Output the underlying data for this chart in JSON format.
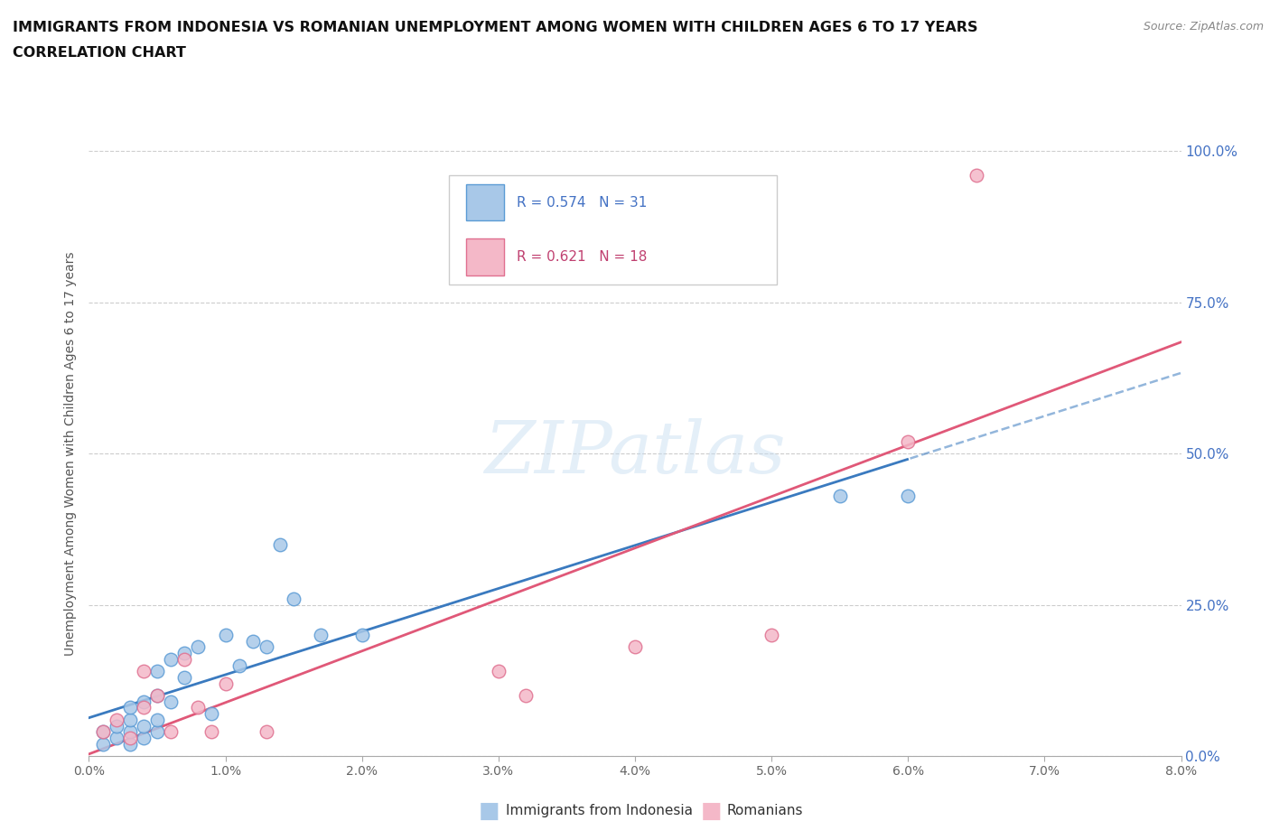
{
  "title_line1": "IMMIGRANTS FROM INDONESIA VS ROMANIAN UNEMPLOYMENT AMONG WOMEN WITH CHILDREN AGES 6 TO 17 YEARS",
  "title_line2": "CORRELATION CHART",
  "source": "Source: ZipAtlas.com",
  "ylabel": "Unemployment Among Women with Children Ages 6 to 17 years",
  "xlabel_ticks": [
    "0.0%",
    "1.0%",
    "2.0%",
    "3.0%",
    "4.0%",
    "5.0%",
    "6.0%",
    "7.0%",
    "8.0%"
  ],
  "xlim": [
    0.0,
    0.08
  ],
  "ylim": [
    0.0,
    1.0
  ],
  "ytick_positions": [
    0.0,
    0.25,
    0.5,
    0.75,
    1.0
  ],
  "ytick_labels": [
    "0.0%",
    "25.0%",
    "50.0%",
    "75.0%",
    "100.0%"
  ],
  "background_color": "#ffffff",
  "watermark_text": "ZIPatlas",
  "legend_R1": "0.574",
  "legend_N1": "31",
  "legend_R2": "0.621",
  "legend_N2": "18",
  "blue_fill": "#a8c8e8",
  "blue_edge": "#5b9bd5",
  "pink_fill": "#f4b8c8",
  "pink_edge": "#e07090",
  "blue_line_color": "#3a7abf",
  "pink_line_color": "#e05878",
  "indonesia_x": [
    0.001,
    0.001,
    0.002,
    0.002,
    0.003,
    0.003,
    0.003,
    0.003,
    0.004,
    0.004,
    0.004,
    0.005,
    0.005,
    0.005,
    0.005,
    0.006,
    0.006,
    0.007,
    0.007,
    0.008,
    0.009,
    0.01,
    0.011,
    0.012,
    0.013,
    0.014,
    0.015,
    0.017,
    0.02,
    0.055,
    0.06
  ],
  "indonesia_y": [
    0.02,
    0.04,
    0.03,
    0.05,
    0.02,
    0.04,
    0.06,
    0.08,
    0.03,
    0.05,
    0.09,
    0.04,
    0.06,
    0.1,
    0.14,
    0.09,
    0.16,
    0.13,
    0.17,
    0.18,
    0.07,
    0.2,
    0.15,
    0.19,
    0.18,
    0.35,
    0.26,
    0.2,
    0.2,
    0.43,
    0.43
  ],
  "romanian_x": [
    0.001,
    0.002,
    0.003,
    0.004,
    0.004,
    0.005,
    0.006,
    0.007,
    0.008,
    0.009,
    0.01,
    0.013,
    0.03,
    0.032,
    0.04,
    0.05,
    0.06,
    0.065
  ],
  "romanian_y": [
    0.04,
    0.06,
    0.03,
    0.08,
    0.14,
    0.1,
    0.04,
    0.16,
    0.08,
    0.04,
    0.12,
    0.04,
    0.14,
    0.1,
    0.18,
    0.2,
    0.52,
    0.96
  ]
}
